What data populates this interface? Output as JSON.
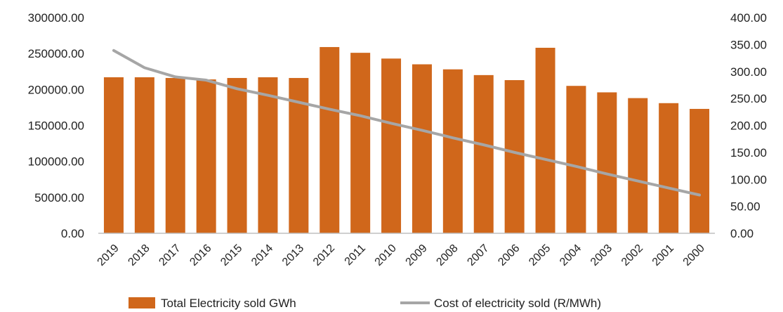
{
  "chart_data": {
    "type": "bar",
    "categories": [
      "2019",
      "2018",
      "2017",
      "2016",
      "2015",
      "2014",
      "2013",
      "2012",
      "2011",
      "2010",
      "2009",
      "2008",
      "2007",
      "2006",
      "2005",
      "2004",
      "2003",
      "2002",
      "2001",
      "2000"
    ],
    "series": [
      {
        "name": "Total Electricity sold GWh",
        "type": "bar",
        "axis": "left",
        "color": "#d0671b",
        "values": [
          217000,
          217000,
          216000,
          214000,
          216000,
          217000,
          216000,
          259000,
          251000,
          243000,
          235000,
          228000,
          220000,
          213000,
          258000,
          205000,
          196000,
          188000,
          181000,
          173000
        ]
      },
      {
        "name": "Cost of electricity sold (R/MWh)",
        "type": "line",
        "axis": "right",
        "color": "#a6a6a6",
        "values": [
          339,
          307,
          290,
          284,
          268,
          256,
          243,
          230,
          218,
          204,
          191,
          177,
          164,
          150,
          137,
          124,
          110,
          97,
          84,
          71
        ]
      }
    ],
    "y_left": {
      "ylim": [
        0,
        300000
      ],
      "ticks": [
        "0.00",
        "50000.00",
        "100000.00",
        "150000.00",
        "200000.00",
        "250000.00",
        "300000.00"
      ]
    },
    "y_right": {
      "ylim": [
        0,
        400
      ],
      "ticks": [
        "0.00",
        "50.00",
        "100.00",
        "150.00",
        "200.00",
        "250.00",
        "300.00",
        "350.00",
        "400.00"
      ]
    },
    "grid": false,
    "legend": "bottom"
  }
}
